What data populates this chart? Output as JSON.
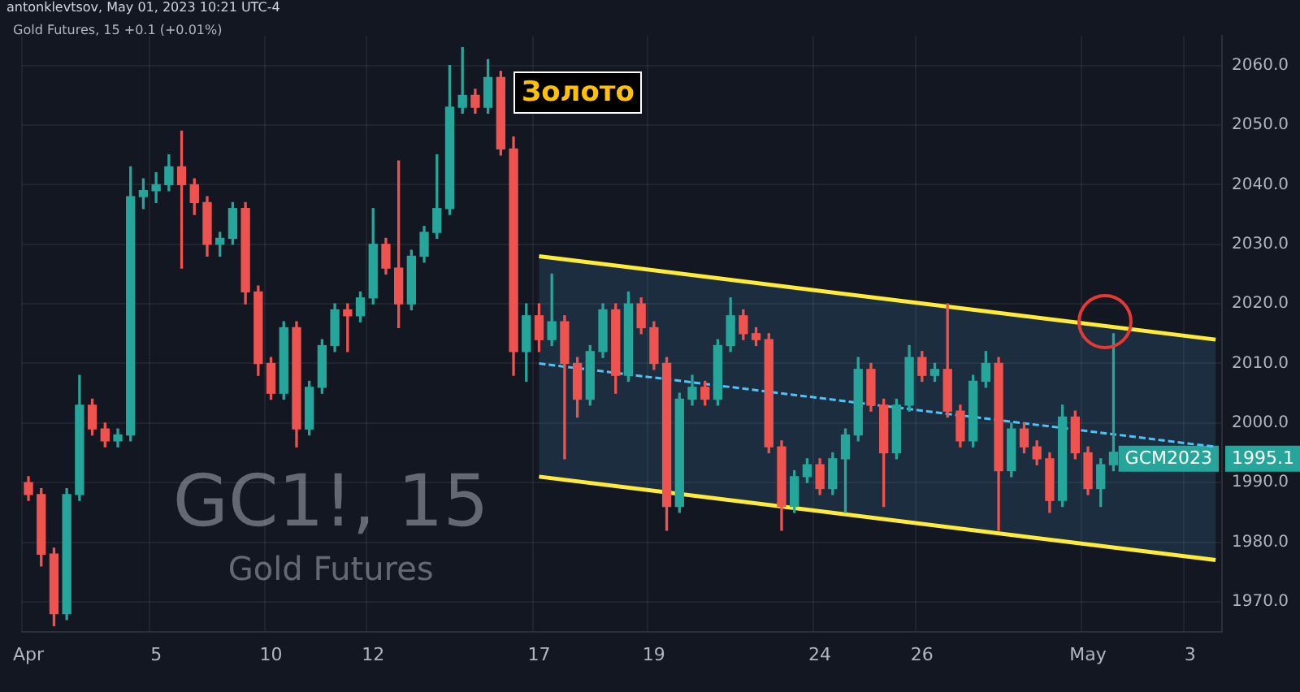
{
  "chart_data": {
    "type": "candlestick",
    "title": "Золото",
    "subtitle": "Gold Futures, 15 +0.1 (+0.01%)",
    "annotations": [
      "antonklevtsov, May 01, 2023 10:21 UTC-4",
      "GC1!, 15",
      "Gold Futures",
      "GCM2023",
      "1995.1"
    ],
    "categories": [
      "Apr",
      null,
      null,
      null,
      null,
      null,
      null,
      null,
      null,
      null,
      "5",
      null,
      null,
      null,
      null,
      null,
      null,
      null,
      null,
      "10",
      null,
      null,
      null,
      null,
      null,
      null,
      null,
      "12",
      null,
      null,
      null,
      null,
      null,
      null,
      null,
      null,
      null,
      null,
      null,
      null,
      "17",
      null,
      null,
      null,
      null,
      null,
      null,
      null,
      null,
      "19",
      null,
      null,
      null,
      null,
      null,
      null,
      null,
      null,
      null,
      null,
      null,
      null,
      "24",
      null,
      null,
      null,
      null,
      null,
      null,
      null,
      "26",
      null,
      null,
      null,
      null,
      null,
      null,
      null,
      null,
      null,
      null,
      null,
      null,
      "May",
      null,
      null,
      null,
      null,
      null,
      null,
      null,
      "3",
      null,
      null
    ],
    "ohlc": [
      [
        1990,
        1991,
        1987,
        1988
      ],
      [
        1988,
        1989,
        1976,
        1978
      ],
      [
        1978,
        1979,
        1966,
        1968
      ],
      [
        1968,
        1989,
        1967,
        1988
      ],
      [
        1988,
        2008,
        1987,
        2003
      ],
      [
        2003,
        2004,
        1998,
        1999
      ],
      [
        1999,
        2000,
        1996,
        1997
      ],
      [
        1997,
        1999,
        1996,
        1998
      ],
      [
        1998,
        2043,
        1997,
        2038
      ],
      [
        2038,
        2041,
        2036,
        2039
      ],
      [
        2039,
        2042,
        2037,
        2040
      ],
      [
        2040,
        2045,
        2039,
        2043
      ],
      [
        2043,
        2049,
        2026,
        2040
      ],
      [
        2040,
        2041,
        2035,
        2037
      ],
      [
        2037,
        2038,
        2028,
        2030
      ],
      [
        2030,
        2032,
        2028,
        2031
      ],
      [
        2031,
        2037,
        2030,
        2036
      ],
      [
        2036,
        2037,
        2020,
        2022
      ],
      [
        2022,
        2023,
        2008,
        2010
      ],
      [
        2010,
        2011,
        2004,
        2005
      ],
      [
        2005,
        2017,
        2004,
        2016
      ],
      [
        2016,
        2017,
        1996,
        1999
      ],
      [
        1999,
        2007,
        1998,
        2006
      ],
      [
        2006,
        2014,
        2005,
        2013
      ],
      [
        2013,
        2020,
        2012,
        2019
      ],
      [
        2019,
        2020,
        2012,
        2018
      ],
      [
        2018,
        2022,
        2017,
        2021
      ],
      [
        2021,
        2036,
        2020,
        2030
      ],
      [
        2030,
        2031,
        2025,
        2026
      ],
      [
        2026,
        2044,
        2016,
        2020
      ],
      [
        2020,
        2029,
        2019,
        2028
      ],
      [
        2028,
        2033,
        2027,
        2032
      ],
      [
        2032,
        2045,
        2031,
        2036
      ],
      [
        2036,
        2060,
        2035,
        2053
      ],
      [
        2053,
        2063,
        2052,
        2055
      ],
      [
        2055,
        2056,
        2052,
        2053
      ],
      [
        2053,
        2061,
        2052,
        2058
      ],
      [
        2058,
        2059,
        2045,
        2046
      ],
      [
        2046,
        2048,
        2008,
        2012
      ],
      [
        2012,
        2020,
        2007,
        2018
      ],
      [
        2018,
        2020,
        2012,
        2014
      ],
      [
        2014,
        2025,
        2013,
        2017
      ],
      [
        2017,
        2018,
        1994,
        2010
      ],
      [
        2010,
        2011,
        2001,
        2004
      ],
      [
        2004,
        2013,
        2003,
        2012
      ],
      [
        2012,
        2020,
        2011,
        2019
      ],
      [
        2019,
        2020,
        2005,
        2008
      ],
      [
        2008,
        2022,
        2007,
        2020
      ],
      [
        2020,
        2021,
        2015,
        2016
      ],
      [
        2016,
        2017,
        2009,
        2010
      ],
      [
        2010,
        2011,
        1982,
        1986
      ],
      [
        1986,
        2005,
        1985,
        2004
      ],
      [
        2004,
        2008,
        2003,
        2006
      ],
      [
        2006,
        2007,
        2003,
        2004
      ],
      [
        2004,
        2014,
        2003,
        2013
      ],
      [
        2013,
        2021,
        2012,
        2018
      ],
      [
        2018,
        2019,
        2014,
        2015
      ],
      [
        2015,
        2016,
        2013,
        2014
      ],
      [
        2014,
        2015,
        1995,
        1996
      ],
      [
        1996,
        1997,
        1982,
        1986
      ],
      [
        1986,
        1992,
        1985,
        1991
      ],
      [
        1991,
        1994,
        1990,
        1993
      ],
      [
        1993,
        1994,
        1988,
        1989
      ],
      [
        1989,
        1995,
        1988,
        1994
      ],
      [
        1994,
        1999,
        1985,
        1998
      ],
      [
        1998,
        2011,
        1997,
        2009
      ],
      [
        2009,
        2010,
        2002,
        2003
      ],
      [
        2003,
        2004,
        1986,
        1995
      ],
      [
        1995,
        2004,
        1994,
        2003
      ],
      [
        2003,
        2013,
        2002,
        2011
      ],
      [
        2011,
        2012,
        2007,
        2008
      ],
      [
        2008,
        2010,
        2007,
        2009
      ],
      [
        2009,
        2020,
        2001,
        2002
      ],
      [
        2002,
        2003,
        1996,
        1997
      ],
      [
        1997,
        2008,
        1996,
        2007
      ],
      [
        2007,
        2012,
        2006,
        2010
      ],
      [
        2010,
        2011,
        1982,
        1992
      ],
      [
        1992,
        2000,
        1991,
        1999
      ],
      [
        1999,
        2000,
        1995,
        1996
      ],
      [
        1996,
        1997,
        1993,
        1994
      ],
      [
        1994,
        1995,
        1985,
        1987
      ],
      [
        1987,
        2003,
        1986,
        2001
      ],
      [
        2001,
        2002,
        1994,
        1995
      ],
      [
        1995,
        1996,
        1988,
        1989
      ],
      [
        1989,
        1994,
        1986,
        1993
      ],
      [
        1993,
        2015,
        1992,
        1995.1
      ],
      null,
      null,
      null,
      null,
      null,
      null,
      null,
      null
    ],
    "series": [
      {
        "type": "line",
        "color": "#ffeb3b",
        "values": [
          null,
          null,
          null,
          null,
          null,
          null,
          null,
          null,
          null,
          null,
          null,
          null,
          null,
          null,
          null,
          null,
          null,
          null,
          null,
          null,
          null,
          null,
          null,
          null,
          null,
          null,
          null,
          null,
          null,
          null,
          null,
          null,
          null,
          null,
          null,
          null,
          null,
          null,
          null,
          null,
          2028,
          null,
          null,
          null,
          null,
          null,
          null,
          null,
          null,
          null,
          null,
          null,
          null,
          null,
          null,
          null,
          null,
          null,
          null,
          null,
          null,
          null,
          null,
          null,
          null,
          null,
          null,
          null,
          null,
          null,
          null,
          null,
          null,
          null,
          null,
          null,
          null,
          null,
          null,
          null,
          null,
          null,
          null,
          null,
          null,
          null,
          null,
          null,
          null,
          null,
          null,
          null,
          null,
          2014
        ]
      },
      {
        "type": "line",
        "color": "#ffeb3b",
        "values": [
          null,
          null,
          null,
          null,
          null,
          null,
          null,
          null,
          null,
          null,
          null,
          null,
          null,
          null,
          null,
          null,
          null,
          null,
          null,
          null,
          null,
          null,
          null,
          null,
          null,
          null,
          null,
          null,
          null,
          null,
          null,
          null,
          null,
          null,
          null,
          null,
          null,
          null,
          null,
          null,
          1991,
          null,
          null,
          null,
          null,
          null,
          null,
          null,
          null,
          null,
          null,
          null,
          null,
          null,
          null,
          null,
          null,
          null,
          null,
          null,
          null,
          null,
          null,
          null,
          null,
          null,
          null,
          null,
          null,
          null,
          null,
          null,
          null,
          null,
          null,
          null,
          null,
          null,
          null,
          null,
          null,
          null,
          null,
          null,
          null,
          null,
          null,
          null,
          null,
          null,
          null,
          null,
          null,
          1977
        ]
      },
      {
        "type": "line",
        "color": "#4fc3f7",
        "line_style": "dashed",
        "values": [
          null,
          null,
          null,
          null,
          null,
          null,
          null,
          null,
          null,
          null,
          null,
          null,
          null,
          null,
          null,
          null,
          null,
          null,
          null,
          null,
          null,
          null,
          null,
          null,
          null,
          null,
          null,
          null,
          null,
          null,
          null,
          null,
          null,
          null,
          null,
          null,
          null,
          null,
          null,
          null,
          2010,
          null,
          null,
          null,
          null,
          null,
          null,
          null,
          null,
          null,
          null,
          null,
          null,
          null,
          null,
          null,
          null,
          null,
          null,
          null,
          null,
          null,
          null,
          null,
          null,
          null,
          null,
          null,
          null,
          null,
          null,
          null,
          null,
          null,
          null,
          null,
          null,
          null,
          null,
          null,
          null,
          null,
          null,
          null,
          null,
          null,
          null,
          null,
          null,
          null,
          null,
          null,
          null,
          1996
        ],
        "lower": [
          null,
          null,
          null,
          null,
          null,
          null,
          null,
          null,
          null,
          null,
          null,
          null,
          null,
          null,
          null,
          null,
          null,
          null,
          null,
          null,
          null,
          null,
          null,
          null,
          null,
          null,
          null,
          null,
          null,
          null,
          null,
          null,
          null,
          null,
          null,
          null,
          null,
          null,
          null,
          null,
          1991,
          null,
          null,
          null,
          null,
          null,
          null,
          null,
          null,
          null,
          null,
          null,
          null,
          null,
          null,
          null,
          null,
          null,
          null,
          null,
          null,
          null,
          null,
          null,
          null,
          null,
          null,
          null,
          null,
          null,
          null,
          null,
          null,
          null,
          null,
          null,
          null,
          null,
          null,
          null,
          null,
          null,
          null,
          null,
          null,
          null,
          null,
          null,
          null,
          null,
          null,
          null,
          null,
          1977
        ],
        "upper": [
          null,
          null,
          null,
          null,
          null,
          null,
          null,
          null,
          null,
          null,
          null,
          null,
          null,
          null,
          null,
          null,
          null,
          null,
          null,
          null,
          null,
          null,
          null,
          null,
          null,
          null,
          null,
          null,
          null,
          null,
          null,
          null,
          null,
          null,
          null,
          null,
          null,
          null,
          null,
          null,
          2028,
          null,
          null,
          null,
          null,
          null,
          null,
          null,
          null,
          null,
          null,
          null,
          null,
          null,
          null,
          null,
          null,
          null,
          null,
          null,
          null,
          null,
          null,
          null,
          null,
          null,
          null,
          null,
          null,
          null,
          null,
          null,
          null,
          null,
          null,
          null,
          null,
          null,
          null,
          null,
          null,
          null,
          null,
          null,
          null,
          null,
          null,
          null,
          null,
          null,
          null,
          null,
          null,
          2014
        ]
      }
    ],
    "ylim": [
      1965,
      2065
    ],
    "yticks": [
      {
        "value": 1970,
        "label": "1970.0"
      },
      {
        "value": 1980,
        "label": "1980.0"
      },
      {
        "value": 1990,
        "label": "1990.0"
      },
      {
        "value": 2000,
        "label": "2000.0"
      },
      {
        "value": 2010,
        "label": "2010.0"
      },
      {
        "value": 2020,
        "label": "2020.0"
      },
      {
        "value": 2030,
        "label": "2030.0"
      },
      {
        "value": 2040,
        "label": "2040.0"
      },
      {
        "value": 2050,
        "label": "2050.0"
      },
      {
        "value": 2060,
        "label": "2060.0"
      }
    ],
    "grid": true
  }
}
